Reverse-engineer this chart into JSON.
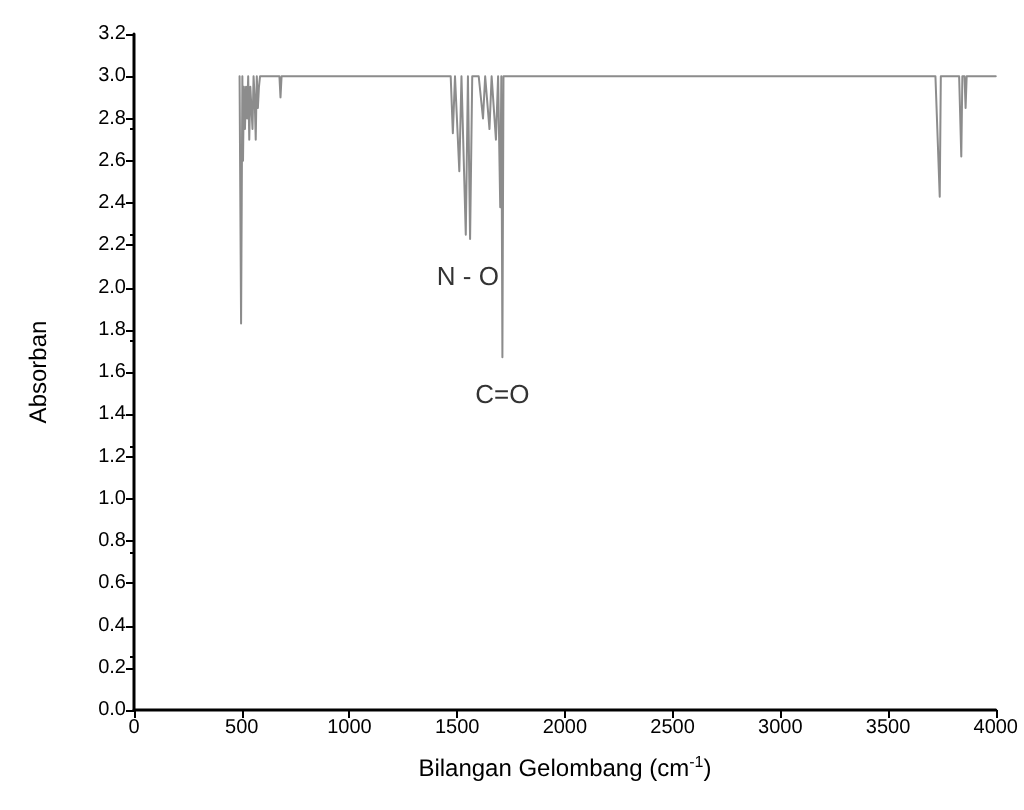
{
  "chart_data": {
    "type": "line",
    "xlabel": "Bilangan Gelombang (cm$^{-1}$)",
    "ylabel": "Absorban",
    "annotations": [
      {
        "text": "N - O",
        "x": 1550,
        "y": 2.23
      },
      {
        "text": "C=O",
        "x": 1710,
        "y": 1.67
      }
    ],
    "x": [
      490,
      495,
      497,
      500,
      503,
      506,
      510,
      515,
      520,
      525,
      530,
      535,
      540,
      545,
      550,
      555,
      560,
      565,
      570,
      575,
      580,
      585,
      600,
      640,
      675,
      680,
      685,
      700,
      1470,
      1480,
      1490,
      1510,
      1520,
      1540,
      1550,
      1560,
      1570,
      1600,
      1620,
      1630,
      1650,
      1660,
      1680,
      1690,
      1700,
      1705,
      1710,
      1715,
      1730,
      3720,
      3740,
      3745,
      3830,
      3840,
      3845,
      3855,
      3860,
      3865,
      4000
    ],
    "series": [
      {
        "color": "#8c8c8c",
        "values": [
          3.0,
          3.0,
          1.83,
          2.4,
          3.0,
          2.6,
          2.95,
          2.75,
          2.95,
          2.8,
          3.0,
          2.7,
          2.95,
          2.85,
          2.75,
          3.0,
          2.9,
          2.7,
          3.0,
          2.85,
          2.95,
          3.0,
          3.0,
          3.0,
          3.0,
          2.9,
          3.0,
          3.0,
          3.0,
          2.73,
          3.0,
          2.55,
          3.0,
          2.25,
          3.0,
          2.23,
          3.0,
          3.0,
          2.8,
          3.0,
          2.75,
          3.0,
          2.7,
          3.0,
          2.38,
          3.0,
          1.67,
          3.0,
          3.0,
          3.0,
          2.43,
          3.0,
          3.0,
          2.62,
          3.0,
          3.0,
          2.85,
          3.0,
          3.0
        ]
      }
    ],
    "xlim": [
      0,
      4000
    ],
    "xticks": [
      0,
      500,
      1000,
      1500,
      2000,
      2500,
      3000,
      3500,
      4000
    ],
    "ylim": [
      0,
      3.2
    ],
    "yticks": [
      {
        "value": 0,
        "label": "0.0"
      },
      {
        "value": 0.2,
        "label": "0.2"
      },
      {
        "value": 0.4,
        "label": "0.4"
      },
      {
        "value": 0.6,
        "label": "0.6"
      },
      {
        "value": 0.8,
        "label": "0.8"
      },
      {
        "value": 1,
        "label": "1.0"
      },
      {
        "value": 1.2,
        "label": "1.2"
      },
      {
        "value": 1.4,
        "label": "1.4"
      },
      {
        "value": 1.6,
        "label": "1.6"
      },
      {
        "value": 1.8,
        "label": "1.8"
      },
      {
        "value": 2,
        "label": "2.0"
      },
      {
        "value": 2.2,
        "label": "2.2"
      },
      {
        "value": 2.4,
        "label": "2.4"
      },
      {
        "value": 2.6,
        "label": "2.6"
      },
      {
        "value": 2.8,
        "label": "2.8"
      },
      {
        "value": 3,
        "label": "3.0"
      },
      {
        "value": 3.2,
        "label": "3.2"
      }
    ],
    "grid": false,
    "marker": "none",
    "line_style": "solid"
  }
}
